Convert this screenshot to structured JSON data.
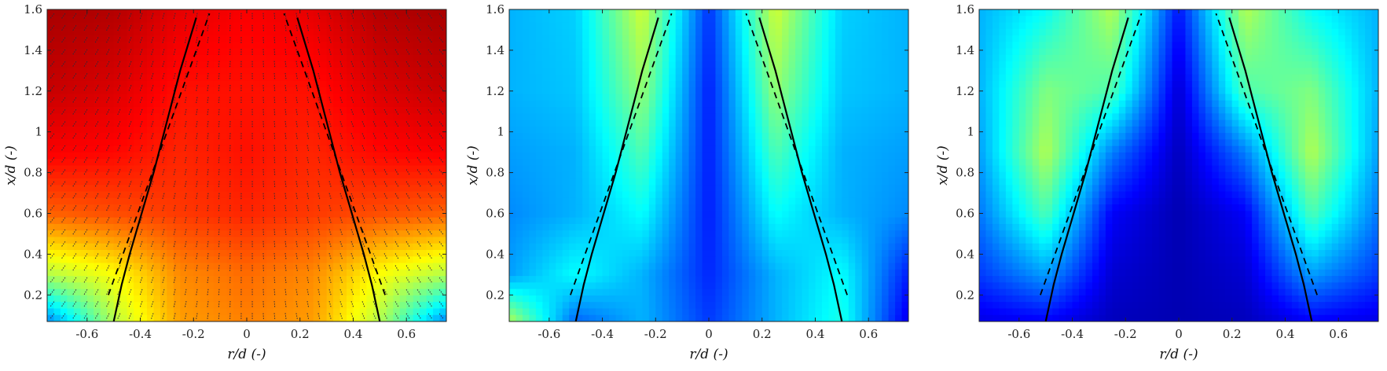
{
  "chart_data": [
    {
      "type": "heatmap",
      "colormap": "jet",
      "overlay": "velocity-vectors",
      "xlabel": "r/d (-)",
      "ylabel": "x/d (-)",
      "xlim": [
        -0.75,
        0.75
      ],
      "ylim": [
        0.07,
        1.6
      ],
      "xticks": [
        -0.6,
        -0.4,
        -0.2,
        0,
        0.2,
        0.4,
        0.6
      ],
      "xtick_labels": [
        "-0.6",
        "-0.4",
        "-0.2",
        "0",
        "0.2",
        "0.4",
        "0.6"
      ],
      "yticks": [
        0.2,
        0.4,
        0.6,
        0.8,
        1,
        1.2,
        1.4,
        1.6
      ],
      "ytick_labels": [
        "0.2",
        "0.4",
        "0.6",
        "0.8",
        "1",
        "1.2",
        "1.4",
        "1.6"
      ],
      "field": {
        "r": [
          -0.75,
          -0.5,
          -0.25,
          0,
          0.25,
          0.5,
          0.75
        ],
        "x": [
          0.07,
          0.3,
          0.6,
          0.9,
          1.2,
          1.6
        ],
        "values": [
          [
            0.25,
            0.55,
            0.72,
            0.75,
            0.72,
            0.55,
            0.25
          ],
          [
            0.55,
            0.62,
            0.74,
            0.77,
            0.74,
            0.62,
            0.55
          ],
          [
            0.78,
            0.8,
            0.82,
            0.84,
            0.82,
            0.8,
            0.78
          ],
          [
            0.88,
            0.87,
            0.84,
            0.86,
            0.84,
            0.87,
            0.88
          ],
          [
            0.93,
            0.91,
            0.86,
            0.86,
            0.86,
            0.91,
            0.93
          ],
          [
            0.96,
            0.95,
            0.9,
            0.88,
            0.9,
            0.95,
            0.96
          ]
        ]
      },
      "curves": [
        {
          "style": "solid",
          "r": [
            -0.5,
            -0.47,
            -0.44,
            -0.35,
            -0.25,
            -0.19
          ],
          "x": [
            0.07,
            0.25,
            0.4,
            0.8,
            1.3,
            1.56
          ]
        },
        {
          "style": "solid",
          "r": [
            0.5,
            0.47,
            0.44,
            0.35,
            0.25,
            0.19
          ],
          "x": [
            0.07,
            0.25,
            0.4,
            0.8,
            1.3,
            1.56
          ]
        },
        {
          "style": "dashed",
          "r": [
            -0.52,
            -0.14
          ],
          "x": [
            0.2,
            1.58
          ]
        },
        {
          "style": "dashed",
          "r": [
            0.52,
            0.14
          ],
          "x": [
            0.2,
            1.58
          ]
        }
      ]
    },
    {
      "type": "heatmap",
      "colormap": "jet",
      "xlabel": "r/d (-)",
      "ylabel": "x/d (-)",
      "xlim": [
        -0.75,
        0.75
      ],
      "ylim": [
        0.07,
        1.6
      ],
      "xticks": [
        -0.6,
        -0.4,
        -0.2,
        0,
        0.2,
        0.4,
        0.6
      ],
      "xtick_labels": [
        "-0.6",
        "-0.4",
        "-0.2",
        "0",
        "0.2",
        "0.4",
        "0.6"
      ],
      "yticks": [
        0.2,
        0.4,
        0.6,
        0.8,
        1,
        1.2,
        1.4,
        1.6
      ],
      "ytick_labels": [
        "0.2",
        "0.4",
        "0.6",
        "0.8",
        "1",
        "1.2",
        "1.4",
        "1.6"
      ],
      "field": {
        "r": [
          -0.75,
          -0.5,
          -0.25,
          0,
          0.25,
          0.5,
          0.75
        ],
        "x": [
          0.07,
          0.3,
          0.6,
          0.9,
          1.2,
          1.6
        ],
        "values": [
          [
            0.55,
            0.22,
            0.3,
            0.18,
            0.3,
            0.4,
            0.1
          ],
          [
            0.28,
            0.38,
            0.3,
            0.16,
            0.3,
            0.38,
            0.15
          ],
          [
            0.26,
            0.3,
            0.38,
            0.15,
            0.38,
            0.3,
            0.26
          ],
          [
            0.28,
            0.3,
            0.45,
            0.15,
            0.45,
            0.3,
            0.28
          ],
          [
            0.3,
            0.32,
            0.52,
            0.15,
            0.52,
            0.32,
            0.3
          ],
          [
            0.3,
            0.33,
            0.58,
            0.17,
            0.58,
            0.33,
            0.3
          ]
        ]
      },
      "curves": [
        {
          "style": "solid",
          "r": [
            -0.5,
            -0.47,
            -0.44,
            -0.35,
            -0.25,
            -0.19
          ],
          "x": [
            0.07,
            0.25,
            0.4,
            0.8,
            1.3,
            1.56
          ]
        },
        {
          "style": "solid",
          "r": [
            0.5,
            0.47,
            0.44,
            0.35,
            0.25,
            0.19
          ],
          "x": [
            0.07,
            0.25,
            0.4,
            0.8,
            1.3,
            1.56
          ]
        },
        {
          "style": "dashed",
          "r": [
            -0.52,
            -0.14
          ],
          "x": [
            0.2,
            1.58
          ]
        },
        {
          "style": "dashed",
          "r": [
            0.52,
            0.14
          ],
          "x": [
            0.2,
            1.58
          ]
        }
      ]
    },
    {
      "type": "heatmap",
      "colormap": "jet",
      "xlabel": "r/d (-)",
      "ylabel": "x/d (-)",
      "xlim": [
        -0.75,
        0.75
      ],
      "ylim": [
        0.07,
        1.6
      ],
      "xticks": [
        -0.6,
        -0.4,
        -0.2,
        0,
        0.2,
        0.4,
        0.6
      ],
      "xtick_labels": [
        "-0.6",
        "-0.4",
        "-0.2",
        "0",
        "0.2",
        "0.4",
        "0.6"
      ],
      "yticks": [
        0.2,
        0.4,
        0.6,
        0.8,
        1,
        1.2,
        1.4,
        1.6
      ],
      "ytick_labels": [
        "0.2",
        "0.4",
        "0.6",
        "0.8",
        "1",
        "1.2",
        "1.4",
        "1.6"
      ],
      "field": {
        "r": [
          -0.75,
          -0.5,
          -0.25,
          0,
          0.25,
          0.5,
          0.75
        ],
        "x": [
          0.07,
          0.3,
          0.6,
          0.9,
          1.2,
          1.6
        ],
        "values": [
          [
            0.1,
            0.12,
            0.06,
            0.05,
            0.06,
            0.12,
            0.1
          ],
          [
            0.18,
            0.28,
            0.08,
            0.05,
            0.08,
            0.28,
            0.18
          ],
          [
            0.24,
            0.45,
            0.12,
            0.05,
            0.12,
            0.45,
            0.24
          ],
          [
            0.28,
            0.55,
            0.25,
            0.06,
            0.25,
            0.55,
            0.28
          ],
          [
            0.3,
            0.5,
            0.45,
            0.08,
            0.45,
            0.5,
            0.3
          ],
          [
            0.3,
            0.38,
            0.55,
            0.14,
            0.55,
            0.38,
            0.3
          ]
        ]
      },
      "curves": [
        {
          "style": "solid",
          "r": [
            -0.5,
            -0.47,
            -0.44,
            -0.35,
            -0.25,
            -0.19
          ],
          "x": [
            0.07,
            0.25,
            0.4,
            0.8,
            1.3,
            1.56
          ]
        },
        {
          "style": "solid",
          "r": [
            0.5,
            0.47,
            0.44,
            0.35,
            0.25,
            0.19
          ],
          "x": [
            0.07,
            0.25,
            0.4,
            0.8,
            1.3,
            1.56
          ]
        },
        {
          "style": "dashed",
          "r": [
            -0.52,
            -0.14
          ],
          "x": [
            0.2,
            1.58
          ]
        },
        {
          "style": "dashed",
          "r": [
            0.52,
            0.14
          ],
          "x": [
            0.2,
            1.58
          ]
        }
      ]
    }
  ]
}
